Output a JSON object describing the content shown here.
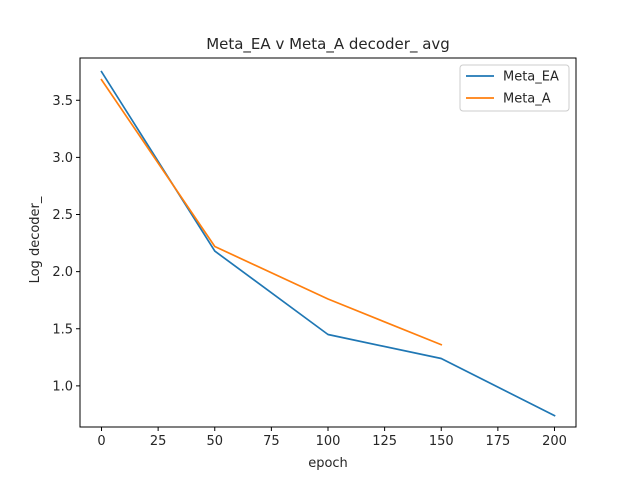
{
  "chart_data": {
    "type": "line",
    "title": "Meta_EA v Meta_A decoder_ avg",
    "xlabel": "epoch",
    "ylabel": "Log decoder_",
    "xlim": [
      -9.5,
      209.5
    ],
    "ylim": [
      0.64,
      3.87
    ],
    "xticks": [
      0,
      25,
      50,
      75,
      100,
      125,
      150,
      175,
      200
    ],
    "xtick_labels": [
      "0",
      "25",
      "50",
      "75",
      "100",
      "125",
      "150",
      "175",
      "200"
    ],
    "yticks": [
      1.0,
      1.5,
      2.0,
      2.5,
      3.0,
      3.5
    ],
    "ytick_labels": [
      "1.0",
      "1.5",
      "2.0",
      "2.5",
      "3.0",
      "3.5"
    ],
    "grid": false,
    "legend_position": "top-right",
    "series": [
      {
        "name": "Meta_EA",
        "color": "#1f77b4",
        "x": [
          0,
          50,
          100,
          150,
          200
        ],
        "values": [
          3.75,
          2.18,
          1.45,
          1.24,
          0.74
        ]
      },
      {
        "name": "Meta_A",
        "color": "#ff7f0e",
        "x": [
          0,
          50,
          100,
          150
        ],
        "values": [
          3.68,
          2.22,
          1.76,
          1.36
        ]
      }
    ]
  }
}
